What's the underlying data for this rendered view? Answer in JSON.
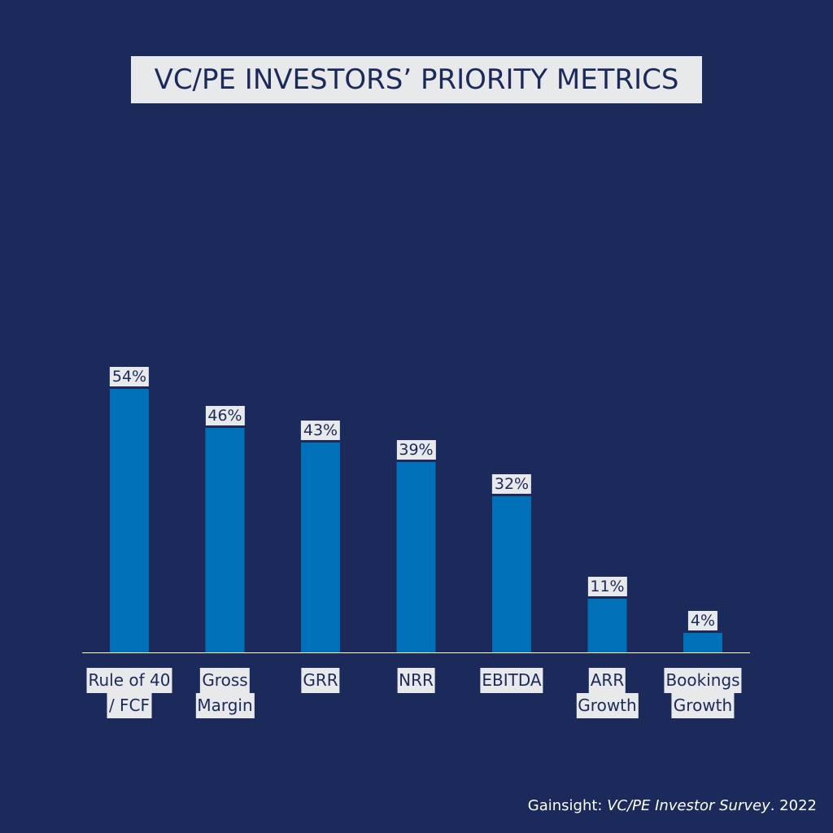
{
  "colors": {
    "background": "#1b2a5b",
    "bar": "#0071b8",
    "label_bg": "#e8e9ea",
    "label_text": "#1b2a5b",
    "axis": "#ffffff"
  },
  "chart_data": {
    "type": "bar",
    "title": "VC/PE INVESTORS’ PRIORITY METRICS",
    "categories": [
      [
        "Rule of 40",
        "/ FCF"
      ],
      [
        "Gross",
        "Margin"
      ],
      [
        "GRR"
      ],
      [
        "NRR"
      ],
      [
        "EBITDA"
      ],
      [
        "ARR",
        "Growth"
      ],
      [
        "Bookings",
        "Growth"
      ]
    ],
    "values": [
      54,
      46,
      43,
      39,
      32,
      11,
      4
    ],
    "value_labels": [
      "54%",
      "46%",
      "43%",
      "39%",
      "32%",
      "11%",
      "4%"
    ],
    "unit": "%",
    "ylim": [
      0,
      100
    ],
    "grid": false,
    "legend": "none"
  },
  "source": {
    "prefix": "Gainsight: ",
    "title": "VC/PE Investor Survey",
    "suffix": ". 2022"
  }
}
